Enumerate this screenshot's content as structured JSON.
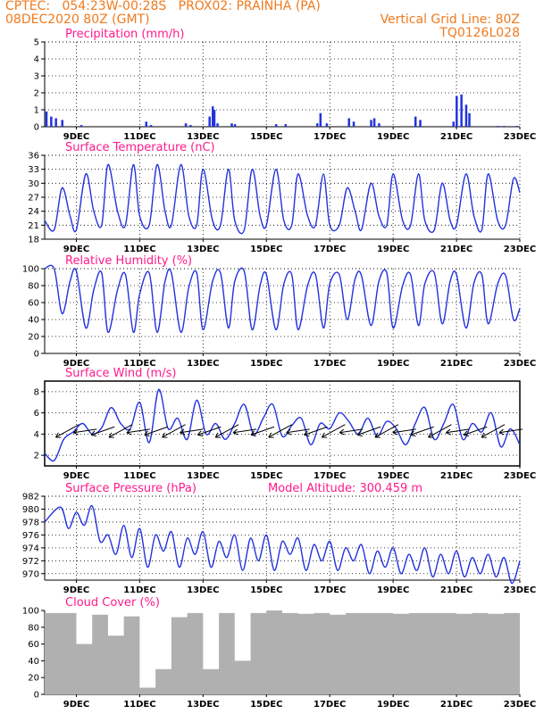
{
  "header": {
    "line1_left": "CPTEC:   054:23W-00:28S   PROX02: PRAINHA (PA)",
    "line2_left": "08DEC2020 80Z (GMT)",
    "line2_right": "Vertical Grid Line: 80Z",
    "line3_right": "TQ0126L028"
  },
  "colors": {
    "header": "#f07a1e",
    "title": "#ff1a8c",
    "line": "#2233dd",
    "bar": "#2233dd",
    "cloud": "#b0b0b0",
    "axis": "#000000"
  },
  "date_ticks": [
    "9DEC",
    "11DEC",
    "13DEC",
    "15DEC",
    "17DEC",
    "19DEC",
    "21DEC",
    "23DEC"
  ],
  "chart_data": [
    {
      "type": "bar",
      "title": "Precipitation (mm/h)",
      "ylim": [
        0,
        5
      ],
      "yticks": [
        0,
        1,
        2,
        3,
        4,
        5
      ],
      "x_unit": "days since 8DEC 08Z",
      "x": [
        0.05,
        0.2,
        0.35,
        0.55,
        1.15,
        3.2,
        3.35,
        4.45,
        4.6,
        5.2,
        5.3,
        5.35,
        5.45,
        5.9,
        6.0,
        7.3,
        7.6,
        8.6,
        8.7,
        8.9,
        9.6,
        9.75,
        10.3,
        10.4,
        10.55,
        11.7,
        11.85,
        12.9,
        13.0,
        13.15,
        13.3,
        13.4,
        14.3,
        14.5,
        14.9
      ],
      "values": [
        0.9,
        0.6,
        0.5,
        0.4,
        0.1,
        0.3,
        0.1,
        0.2,
        0.1,
        0.6,
        1.2,
        1.0,
        0.2,
        0.2,
        0.15,
        0.15,
        0.15,
        0.2,
        0.8,
        0.2,
        0.5,
        0.3,
        0.4,
        0.5,
        0.2,
        0.6,
        0.4,
        0.3,
        1.8,
        1.9,
        1.3,
        0.8,
        0.05,
        0.05,
        0.05
      ]
    },
    {
      "type": "line",
      "title": "Surface Temperature (nC)",
      "ylim": [
        18,
        36
      ],
      "yticks": [
        18,
        21,
        24,
        27,
        30,
        33,
        36
      ],
      "x_unit": "days since 8DEC 08Z",
      "x": [
        0,
        0.3,
        0.55,
        0.8,
        1.0,
        1.3,
        1.55,
        1.8,
        2.0,
        2.3,
        2.55,
        2.8,
        3.0,
        3.3,
        3.55,
        3.8,
        4.0,
        4.3,
        4.55,
        4.8,
        5.0,
        5.3,
        5.55,
        5.8,
        6.0,
        6.3,
        6.55,
        6.8,
        7.0,
        7.3,
        7.55,
        7.8,
        8.0,
        8.3,
        8.55,
        8.8,
        9.0,
        9.3,
        9.55,
        9.8,
        10.0,
        10.3,
        10.55,
        10.8,
        11.0,
        11.3,
        11.55,
        11.8,
        12.0,
        12.3,
        12.55,
        12.8,
        13.0,
        13.3,
        13.55,
        13.8,
        14.0,
        14.3,
        14.55,
        14.8,
        15.0
      ],
      "values": [
        22,
        20,
        29,
        23,
        20,
        32,
        24,
        21,
        34,
        24,
        21,
        34,
        23,
        21,
        34,
        24,
        21,
        34,
        23,
        21,
        33,
        22,
        21,
        33,
        22,
        20,
        33,
        23,
        21,
        33,
        22,
        21,
        32,
        23,
        21,
        32,
        21,
        21,
        29,
        24,
        20,
        30,
        23,
        21,
        32,
        22,
        21,
        32,
        22,
        20,
        30,
        22,
        21,
        32,
        23,
        20,
        32,
        22,
        21,
        31,
        28
      ]
    },
    {
      "type": "line",
      "title": "Relative Humidity (%)",
      "ylim": [
        0,
        100
      ],
      "yticks": [
        0,
        20,
        40,
        60,
        80,
        100
      ],
      "x_unit": "days since 8DEC 08Z",
      "x": [
        0,
        0.3,
        0.55,
        0.8,
        1.0,
        1.3,
        1.55,
        1.8,
        2.0,
        2.3,
        2.55,
        2.8,
        3.0,
        3.3,
        3.55,
        3.8,
        4.0,
        4.3,
        4.55,
        4.8,
        5.0,
        5.3,
        5.55,
        5.8,
        6.0,
        6.3,
        6.55,
        6.8,
        7.0,
        7.3,
        7.55,
        7.8,
        8.0,
        8.3,
        8.55,
        8.8,
        9.0,
        9.3,
        9.55,
        9.8,
        10.0,
        10.3,
        10.55,
        10.8,
        11.0,
        11.3,
        11.55,
        11.8,
        12.0,
        12.3,
        12.55,
        12.8,
        13.0,
        13.3,
        13.55,
        13.8,
        14.0,
        14.3,
        14.55,
        14.8,
        15.0
      ],
      "values": [
        100,
        100,
        47,
        85,
        97,
        30,
        75,
        95,
        25,
        75,
        93,
        25,
        70,
        95,
        25,
        85,
        95,
        25,
        78,
        95,
        28,
        85,
        95,
        30,
        85,
        97,
        28,
        80,
        93,
        28,
        82,
        93,
        28,
        80,
        93,
        30,
        82,
        93,
        40,
        88,
        92,
        33,
        85,
        95,
        30,
        80,
        93,
        33,
        82,
        95,
        35,
        85,
        93,
        30,
        83,
        93,
        35,
        82,
        92,
        40,
        53
      ]
    },
    {
      "type": "line",
      "title": "Surface Wind (m/s)",
      "ylim": [
        1,
        9
      ],
      "yticks": [
        2,
        4,
        6,
        8
      ],
      "x_unit": "days since 8DEC 08Z",
      "x": [
        0,
        0.3,
        0.6,
        0.9,
        1.2,
        1.5,
        1.8,
        2.1,
        2.4,
        2.7,
        3.0,
        3.3,
        3.6,
        3.9,
        4.2,
        4.5,
        4.8,
        5.1,
        5.4,
        5.7,
        6.0,
        6.3,
        6.6,
        6.9,
        7.2,
        7.5,
        7.8,
        8.1,
        8.4,
        8.7,
        9.0,
        9.3,
        9.6,
        9.9,
        10.2,
        10.5,
        10.8,
        11.1,
        11.4,
        11.7,
        12.0,
        12.3,
        12.6,
        12.9,
        13.2,
        13.5,
        13.8,
        14.1,
        14.4,
        14.7,
        15.0
      ],
      "values": [
        2.2,
        1.5,
        3.5,
        4.2,
        5.0,
        4.0,
        4.6,
        6.5,
        5.0,
        4.5,
        7.0,
        3.2,
        8.2,
        4.5,
        5.5,
        3.5,
        7.2,
        4.0,
        5.0,
        3.5,
        5.0,
        6.8,
        4.0,
        5.5,
        6.8,
        3.8,
        4.8,
        5.5,
        3.0,
        5.0,
        4.5,
        6.0,
        5.2,
        4.0,
        5.5,
        3.8,
        5.2,
        4.5,
        3.0,
        5.0,
        6.5,
        3.5,
        5.0,
        6.8,
        3.5,
        5.0,
        4.2,
        6.0,
        2.8,
        4.5,
        3.0
      ]
    },
    {
      "type": "line",
      "title": "Surface Pressure (hPa)",
      "subtitle": "Model Altitude: 300.459 m",
      "ylim": [
        969,
        982
      ],
      "yticks": [
        970,
        972,
        974,
        976,
        978,
        980,
        982
      ],
      "x_unit": "days since 8DEC 08Z",
      "x": [
        0,
        0.5,
        0.75,
        1.0,
        1.25,
        1.5,
        1.75,
        2.0,
        2.25,
        2.5,
        2.75,
        3.0,
        3.25,
        3.5,
        3.75,
        4.0,
        4.25,
        4.5,
        4.75,
        5.0,
        5.25,
        5.5,
        5.75,
        6.0,
        6.25,
        6.5,
        6.75,
        7.0,
        7.25,
        7.5,
        7.75,
        8.0,
        8.25,
        8.5,
        8.75,
        9.0,
        9.25,
        9.5,
        9.75,
        10.0,
        10.25,
        10.5,
        10.75,
        11.0,
        11.25,
        11.5,
        11.75,
        12.0,
        12.25,
        12.5,
        12.75,
        13.0,
        13.25,
        13.5,
        13.75,
        14.0,
        14.25,
        14.5,
        14.75,
        15.0
      ],
      "values": [
        978,
        980.3,
        977,
        979.5,
        977.5,
        980.5,
        975,
        976,
        973,
        977.5,
        972.5,
        977,
        971,
        976,
        973.5,
        976.5,
        971,
        975.5,
        973,
        976.5,
        971,
        975,
        972.5,
        976,
        970.5,
        975.5,
        972,
        976,
        970.5,
        975,
        973,
        975.5,
        970.5,
        974.5,
        972,
        975,
        970.5,
        974,
        972,
        974.5,
        970,
        973.5,
        971,
        974,
        970,
        973,
        970.5,
        974,
        969.5,
        973,
        970,
        973.5,
        969.5,
        972.5,
        970,
        973,
        969.5,
        972.5,
        968.5,
        972
      ]
    },
    {
      "type": "bar",
      "title": "Cloud Cover (%)",
      "ylim": [
        0,
        100
      ],
      "yticks": [
        0,
        20,
        40,
        60,
        80,
        100
      ],
      "x_unit": "days since 8DEC 08Z",
      "x": [
        0,
        0.5,
        1.0,
        1.5,
        2.0,
        2.5,
        3.0,
        3.5,
        4.0,
        4.5,
        5.0,
        5.5,
        6.0,
        6.5,
        7.0,
        7.5,
        8.0,
        8.5,
        9.0,
        9.5,
        10.0,
        10.5,
        11.0,
        11.5,
        12.0,
        12.5,
        13.0,
        13.5,
        14.0,
        14.5,
        15.0
      ],
      "values": [
        97,
        97,
        60,
        95,
        70,
        93,
        8,
        30,
        92,
        97,
        30,
        97,
        40,
        97,
        100,
        97,
        96,
        97,
        95,
        97,
        97,
        97,
        96,
        97,
        97,
        97,
        96,
        97,
        96,
        97,
        97
      ]
    }
  ]
}
